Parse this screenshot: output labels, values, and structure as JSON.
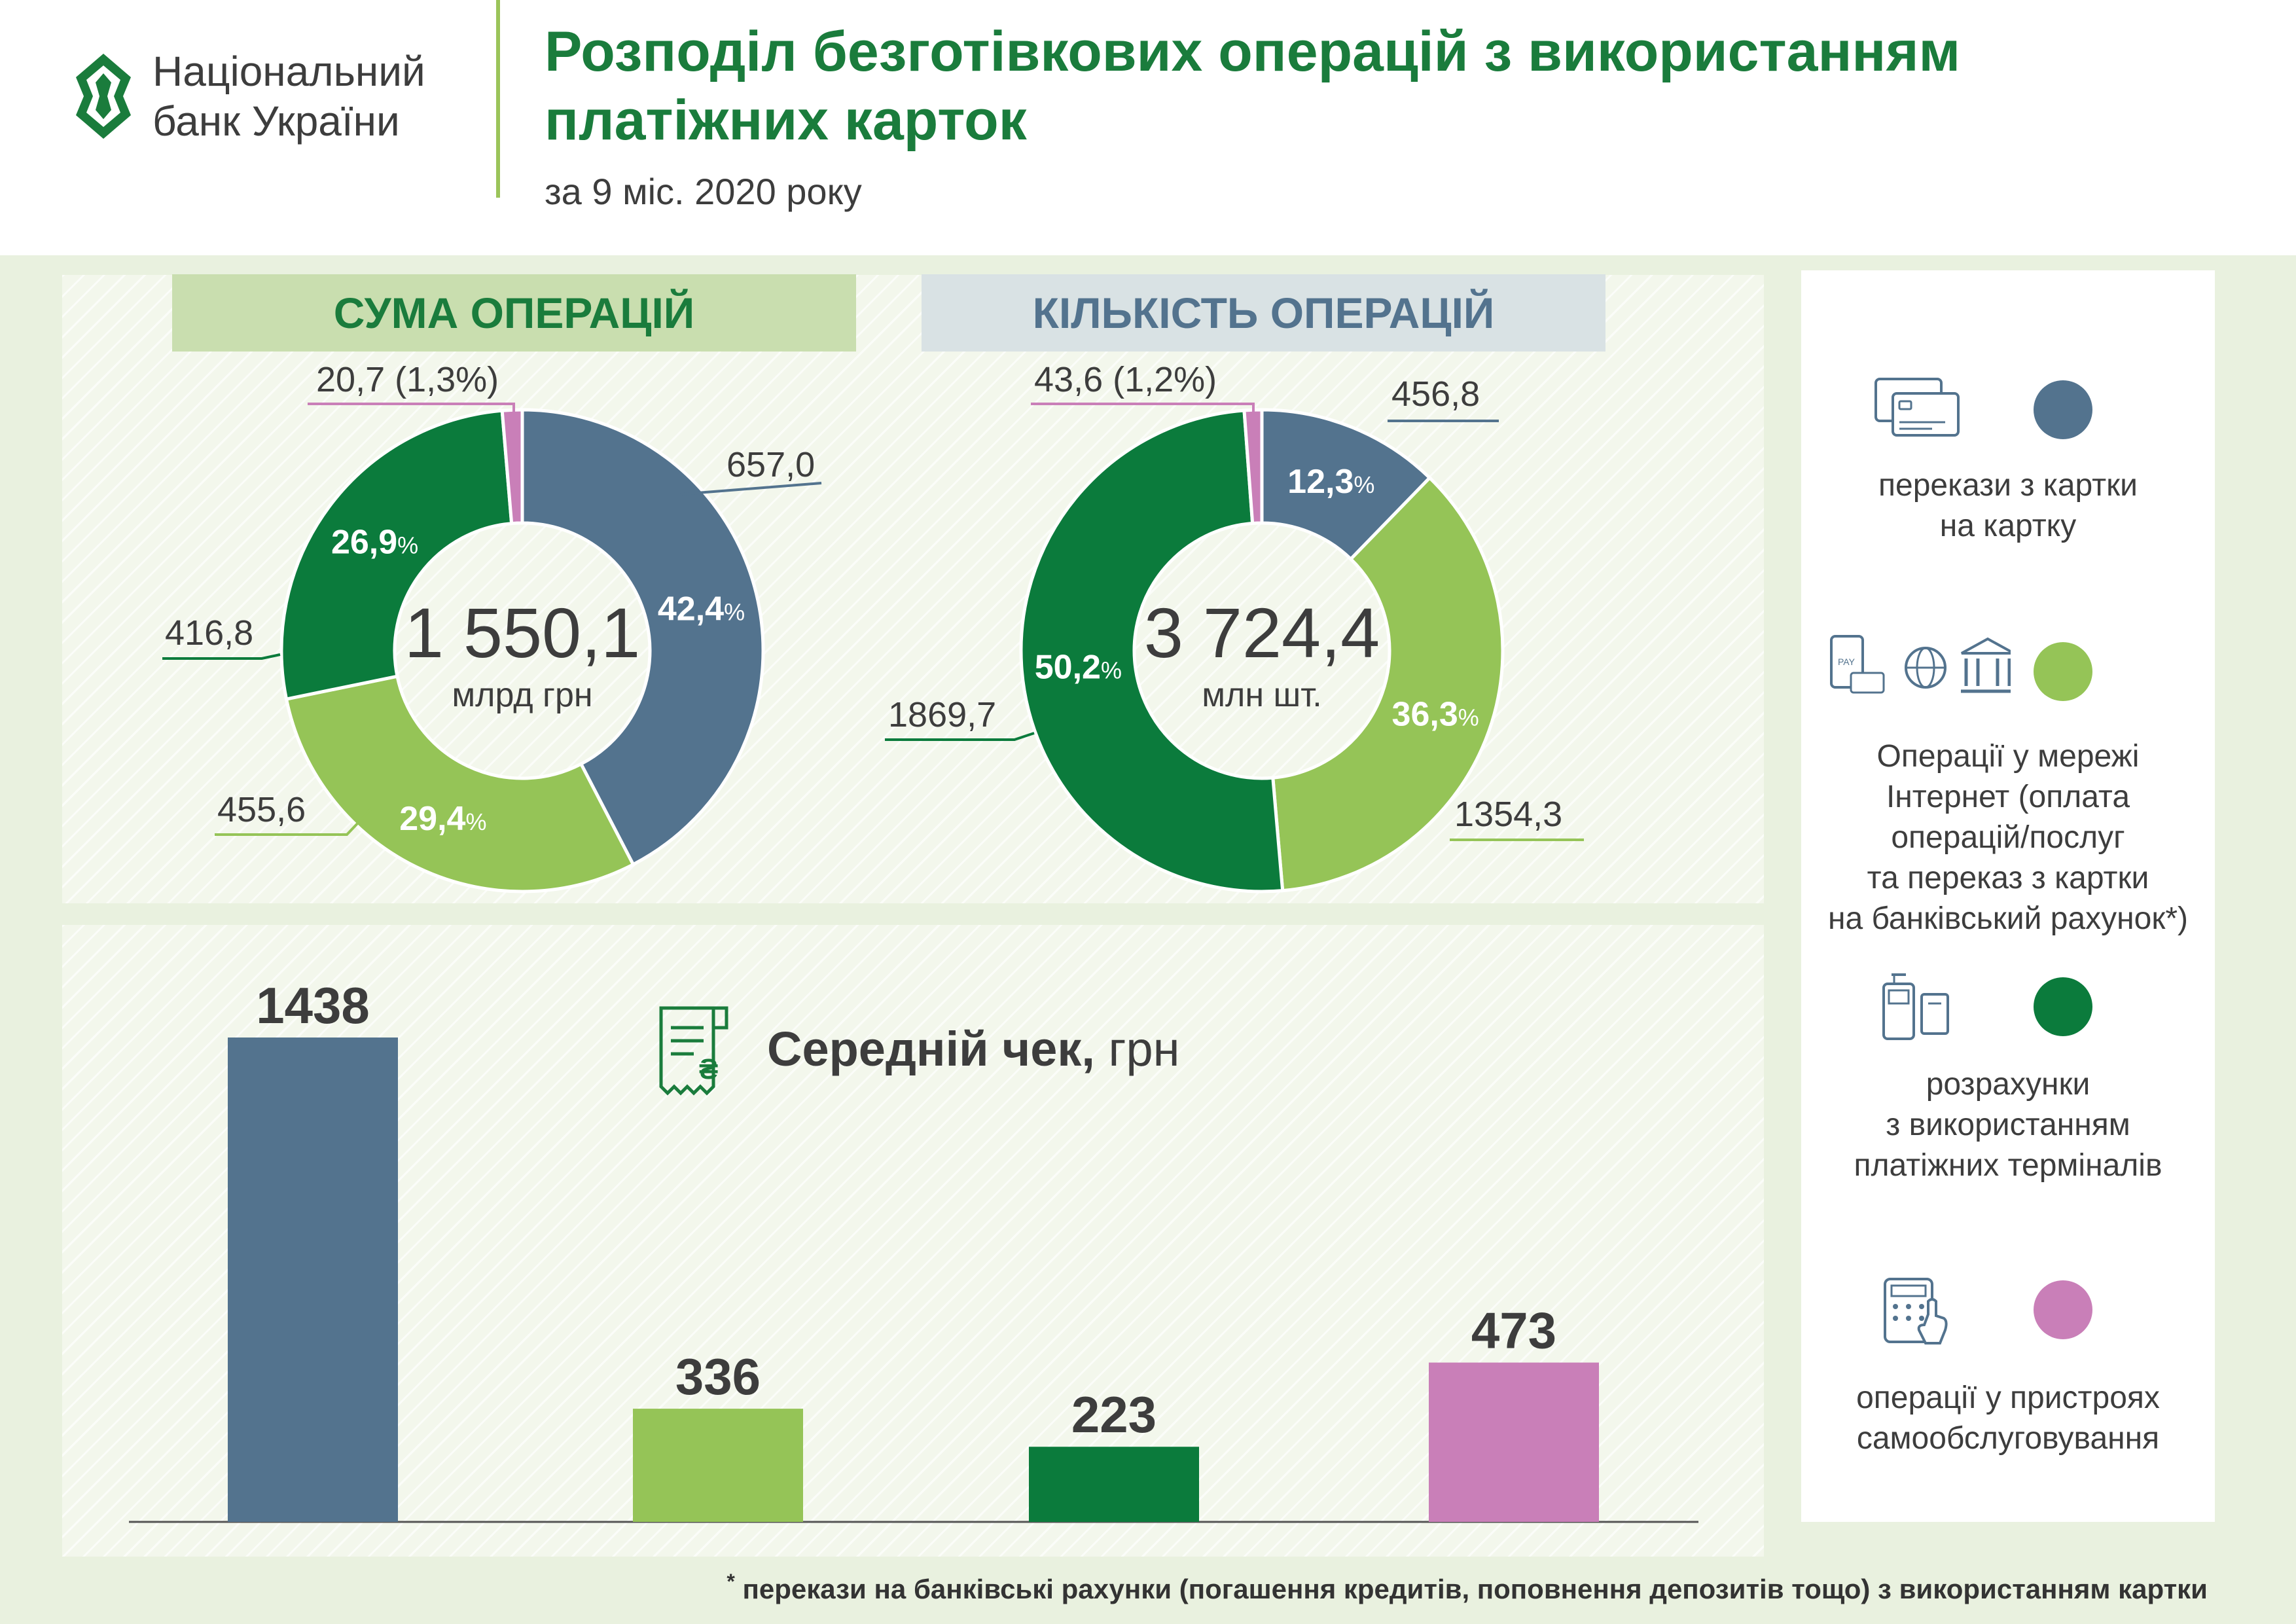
{
  "header": {
    "logo_line1": "Національний",
    "logo_line2": "банк України",
    "title_line1": "Розподіл безготівкових операцій з використанням",
    "title_line2": "платіжних карток",
    "subtitle": "за 9 міс. 2020 року"
  },
  "colors": {
    "green_title": "#1a7c3c",
    "slate": "#53738e",
    "light_green": "#95c457",
    "dark_green": "#0b7b3c",
    "pink": "#c97fb8"
  },
  "chart_data": [
    {
      "type": "pie",
      "title": "СУМА ОПЕРАЦІЙ",
      "center_value": "1 550,1",
      "center_unit": "млрд грн",
      "slices": [
        {
          "name": "перекази з картки на картку",
          "value": 657.0,
          "value_label": "657,0",
          "pct": 42.4,
          "pct_label": "42,4"
        },
        {
          "name": "Операції у мережі Інтернет",
          "value": 455.6,
          "value_label": "455,6",
          "pct": 29.4,
          "pct_label": "29,4"
        },
        {
          "name": "розрахунки з використанням платіжних терміналів",
          "value": 416.8,
          "value_label": "416,8",
          "pct": 26.9,
          "pct_label": "26,9"
        },
        {
          "name": "операції у пристроях самообслуговування",
          "value": 20.7,
          "value_label": "20,7 (1,3%)",
          "pct": 1.3,
          "pct_label": ""
        }
      ]
    },
    {
      "type": "pie",
      "title": "КІЛЬКІСТЬ ОПЕРАЦІЙ",
      "center_value": "3 724,4",
      "center_unit": "млн шт.",
      "slices": [
        {
          "name": "перекази з картки на картку",
          "value": 456.8,
          "value_label": "456,8",
          "pct": 12.3,
          "pct_label": "12,3"
        },
        {
          "name": "Операції у мережі Інтернет",
          "value": 1354.3,
          "value_label": "1354,3",
          "pct": 36.3,
          "pct_label": "36,3"
        },
        {
          "name": "розрахунки з використанням платіжних терміналів",
          "value": 1869.7,
          "value_label": "1869,7",
          "pct": 50.2,
          "pct_label": "50,2"
        },
        {
          "name": "операції у пристроях самообслуговування",
          "value": 43.6,
          "value_label": "43,6 (1,2%)",
          "pct": 1.2,
          "pct_label": ""
        }
      ]
    },
    {
      "type": "bar",
      "title": "Середній чек, грн",
      "title_bold": "Середній чек,",
      "title_unit": "грн",
      "categories": [
        "перекази з картки на картку",
        "Операції у мережі Інтернет",
        "розрахунки з використанням платіжних терміналів",
        "операції у пристроях самообслуговування"
      ],
      "values": [
        1438,
        336,
        223,
        473
      ],
      "ylim": [
        0,
        1438
      ]
    }
  ],
  "legend": {
    "items": [
      {
        "icon": "card-icon",
        "lines": [
          "перекази з картки",
          "на картку"
        ]
      },
      {
        "icon": "internet-payment-icon",
        "lines": [
          "Операції у мережі",
          "Інтернет (оплата",
          "операцій/послуг",
          "та переказ з картки",
          "на банківський рахунок*)"
        ]
      },
      {
        "icon": "terminal-icon",
        "lines": [
          "розрахунки",
          "з використанням",
          "платіжних терміналів"
        ]
      },
      {
        "icon": "self-service-icon",
        "lines": [
          "операції у пристроях",
          "самообслуговування"
        ]
      }
    ]
  },
  "footnote": {
    "mark": "*",
    "text": "перекази на банківські рахунки (погашення кредитів, поповнення депозитів тощо) з використанням картки"
  }
}
